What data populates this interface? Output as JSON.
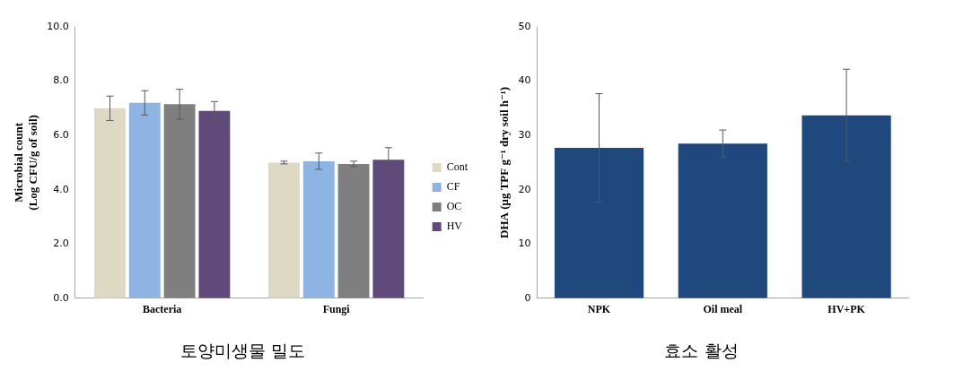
{
  "chart_data": [
    {
      "type": "bar",
      "title": "토양미생물 밀도",
      "y_label": [
        "Microbial count",
        "(Log CFU/g of soil)"
      ],
      "categories": [
        "Bacteria",
        "Fungi"
      ],
      "series": [
        {
          "name": "Cont",
          "color": "#ddd9c3",
          "values": [
            7.0,
            5.0
          ],
          "errors": [
            0.45,
            0.05
          ]
        },
        {
          "name": "CF",
          "color": "#8db4e2",
          "values": [
            7.2,
            5.05
          ],
          "errors": [
            0.45,
            0.3
          ]
        },
        {
          "name": "OC",
          "color": "#7f7f7f",
          "values": [
            7.15,
            4.95
          ],
          "errors": [
            0.55,
            0.1
          ]
        },
        {
          "name": "HV",
          "color": "#604a7b",
          "values": [
            6.9,
            5.1
          ],
          "errors": [
            0.35,
            0.45
          ]
        }
      ],
      "ylim": [
        0,
        10
      ],
      "yticks": [
        {
          "value": 0,
          "label": "0.0"
        },
        {
          "value": 2,
          "label": "2.0"
        },
        {
          "value": 4,
          "label": "4.0"
        },
        {
          "value": 6,
          "label": "6.0"
        },
        {
          "value": 8,
          "label": "8.0"
        },
        {
          "value": 10,
          "label": "10.0"
        }
      ],
      "grid": false,
      "legend": "right"
    },
    {
      "type": "bar",
      "title": "효소 활성",
      "y_label": "DHA (μg TPF g⁻¹ dry soil h⁻¹)",
      "categories": [
        "NPK",
        "Oil meal",
        "HV+PK"
      ],
      "values": [
        27.7,
        28.5,
        33.7
      ],
      "errors": [
        10.0,
        2.5,
        8.5
      ],
      "color": "#1f497d",
      "ylim": [
        0,
        50
      ],
      "yticks": [
        0,
        10,
        20,
        30,
        40,
        50
      ],
      "grid": false
    }
  ]
}
